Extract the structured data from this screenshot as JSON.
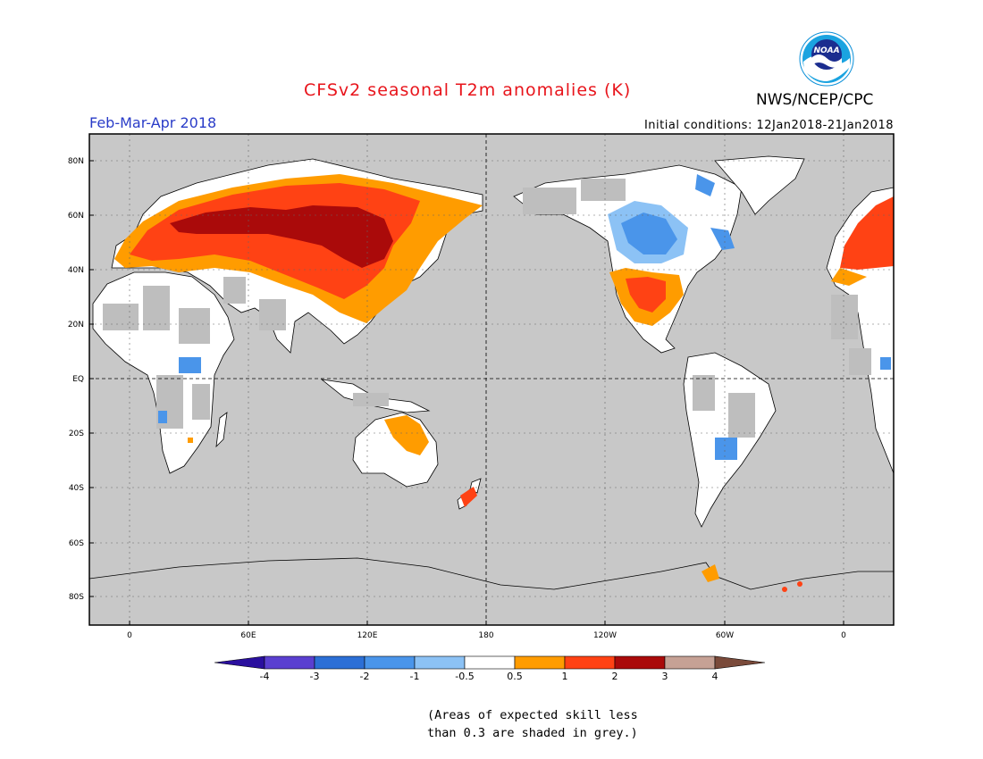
{
  "title": "CFSv2 seasonal T2m anomalies (K)",
  "organization": "NWS/NCEP/CPC",
  "logo_text": "NOAA",
  "period": "Feb-Mar-Apr 2018",
  "initial_conditions": "Initial conditions: 12Jan2018-21Jan2018",
  "axes": {
    "lat_ticks": [
      "80N",
      "60N",
      "40N",
      "20N",
      "EQ",
      "20S",
      "40S",
      "60S",
      "80S"
    ],
    "lon_ticks": [
      "0",
      "60E",
      "120E",
      "180",
      "120W",
      "60W",
      "0"
    ]
  },
  "colorbar": {
    "labels": [
      "-4",
      "-3",
      "-2",
      "-1",
      "-0.5",
      "0.5",
      "1",
      "2",
      "3",
      "4"
    ],
    "colors": [
      "#2a0f9e",
      "#5a3fd0",
      "#2c6fd6",
      "#4a95ea",
      "#8cc2f5",
      "#ffffff",
      "#ff9c00",
      "#ff4214",
      "#aa0a0a",
      "#c6a195",
      "#7a4a3a"
    ]
  },
  "note": [
    "(Areas of expected skill less",
    "than 0.3 are shaded in grey.)"
  ],
  "colors": {
    "ocean": "#c8c8c8",
    "skill_grey": "#bebebe",
    "land_white": "#ffffff"
  }
}
